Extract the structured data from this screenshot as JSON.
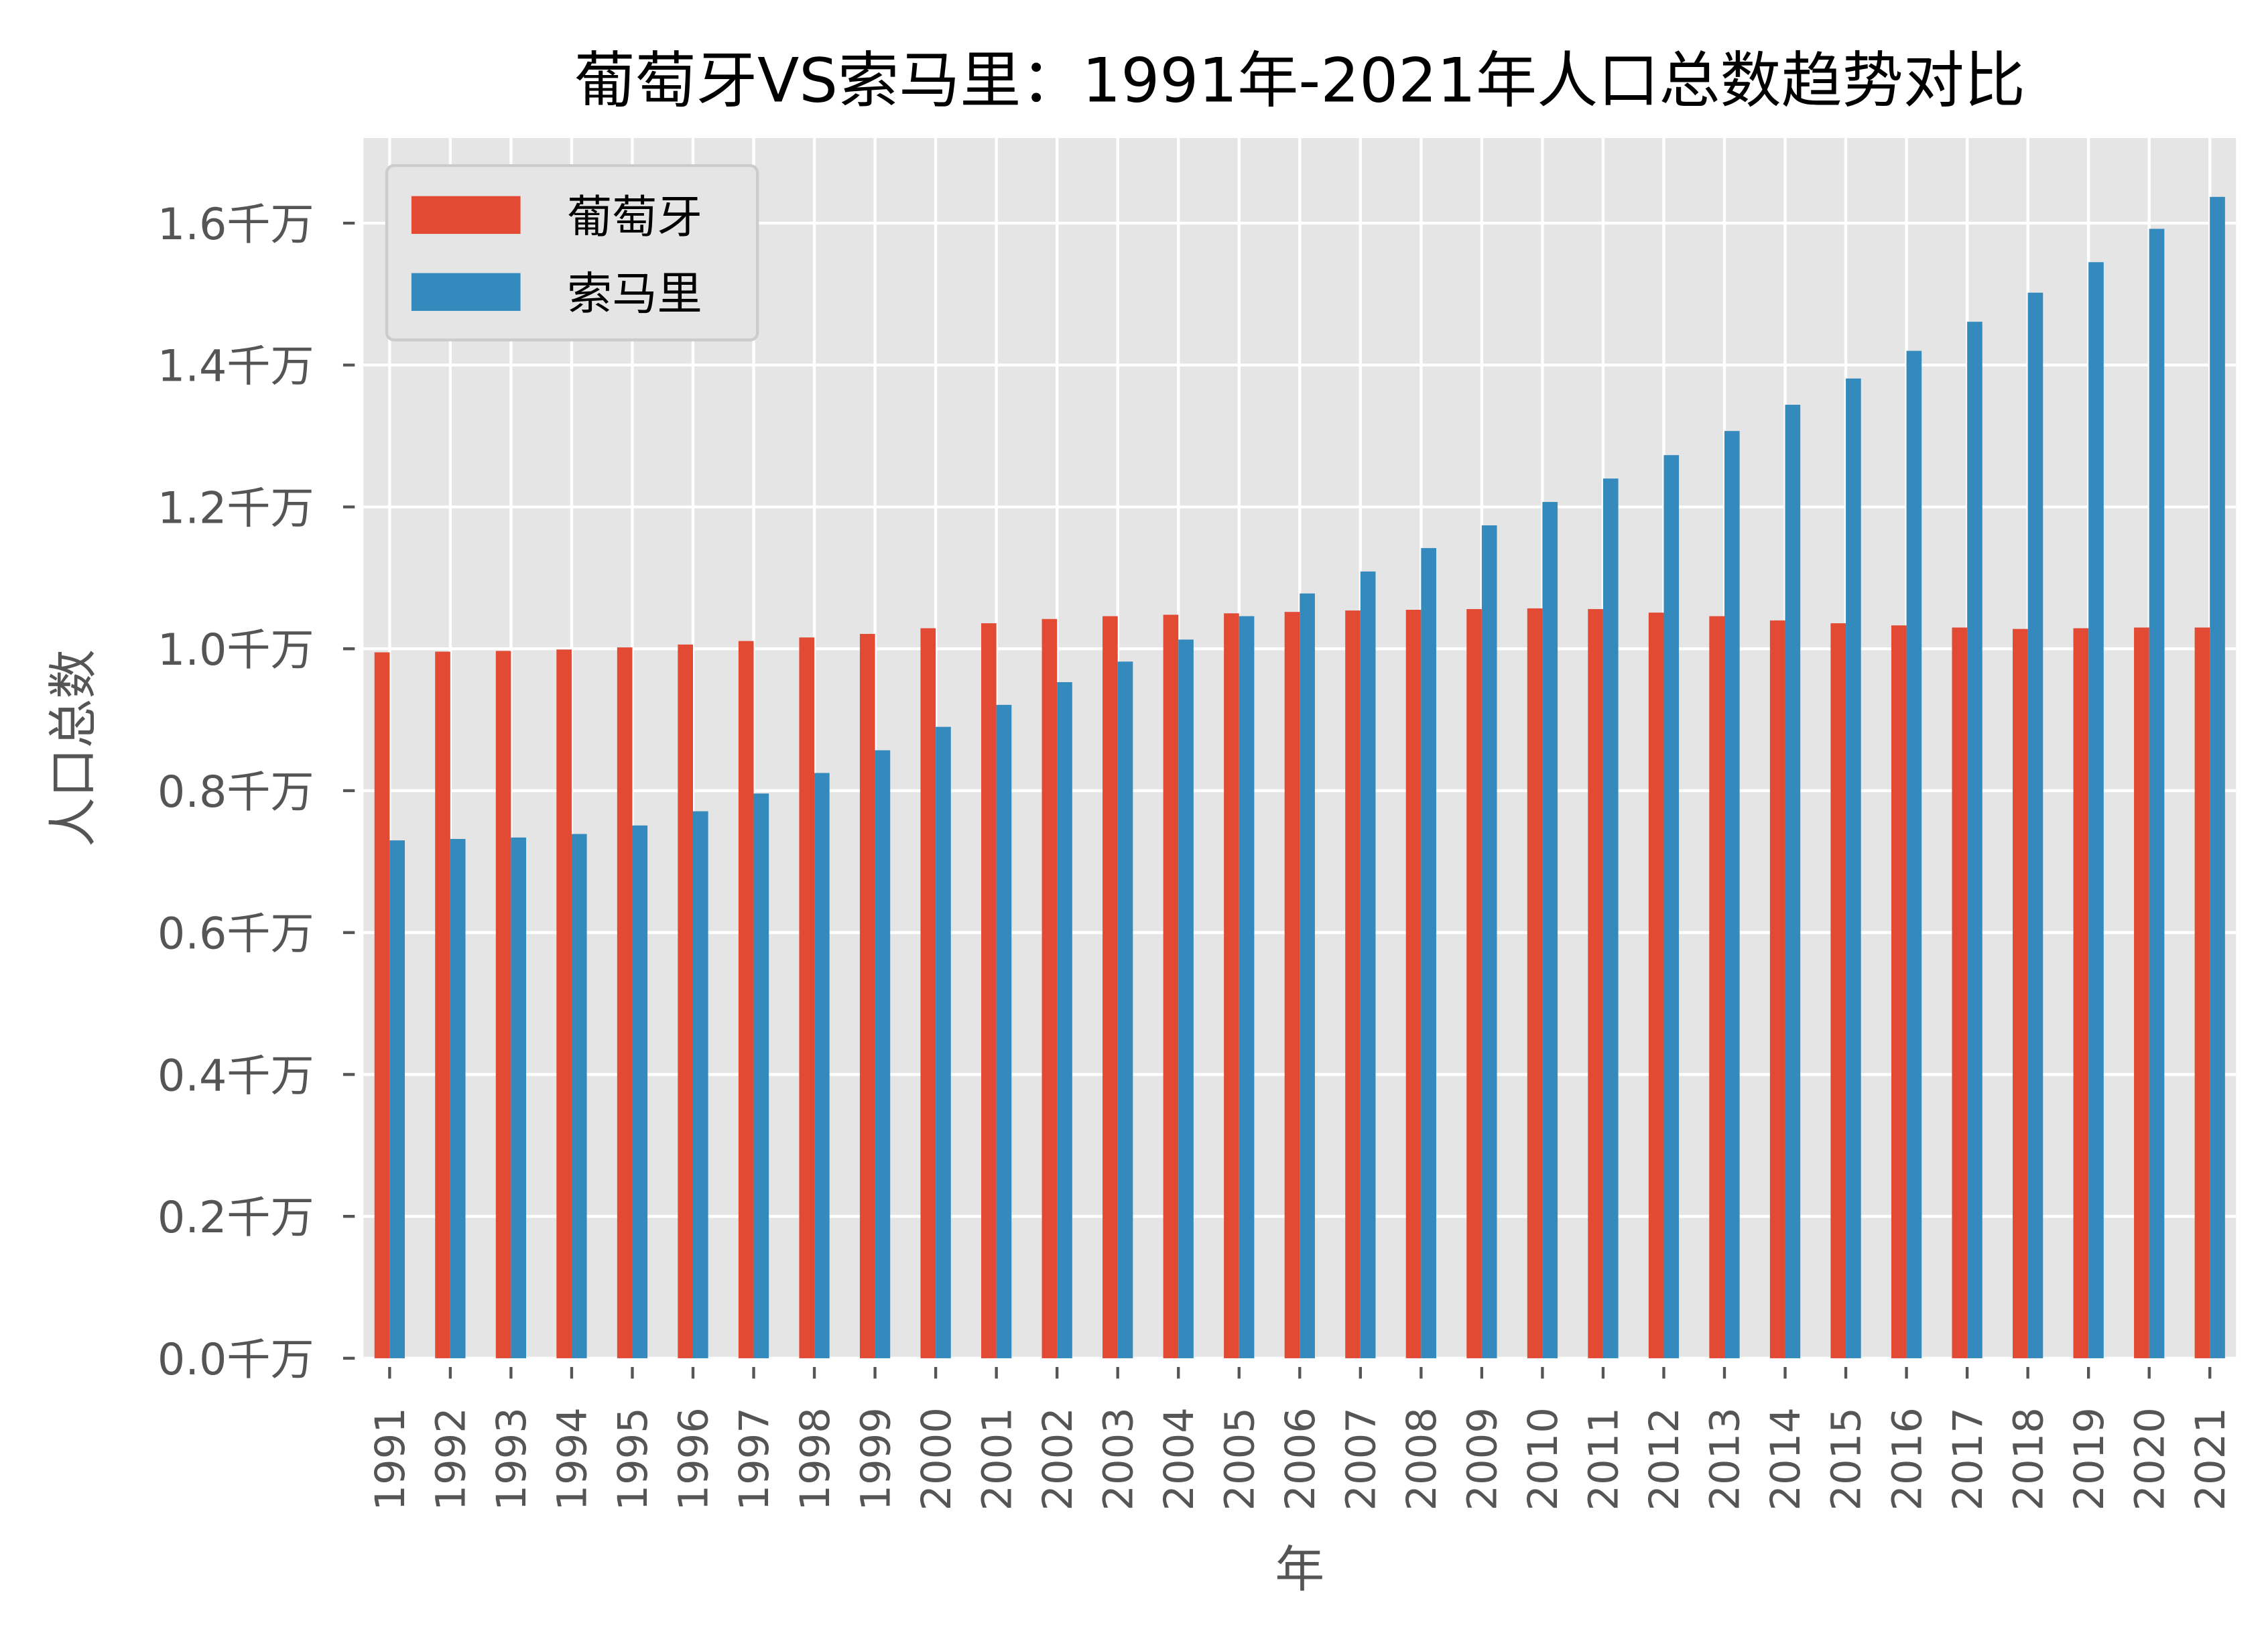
{
  "chart_data": {
    "type": "bar",
    "title": "葡萄牙VS索马里：1991年-2021年人口总数趋势对比",
    "xlabel": "年",
    "ylabel": "人口总数",
    "y_unit_suffix": "千万",
    "ylim": [
      0,
      1.72
    ],
    "yticks": [
      0.0,
      0.2,
      0.4,
      0.6,
      0.8,
      1.0,
      1.2,
      1.4,
      1.6
    ],
    "ytick_labels": [
      "0.0千万",
      "0.2千万",
      "0.4千万",
      "0.6千万",
      "0.8千万",
      "1.0千万",
      "1.2千万",
      "1.4千万",
      "1.6千万"
    ],
    "grid": true,
    "legend_position": "top-left",
    "categories": [
      "1991",
      "1992",
      "1993",
      "1994",
      "1995",
      "1996",
      "1997",
      "1998",
      "1999",
      "2000",
      "2001",
      "2002",
      "2003",
      "2004",
      "2005",
      "2006",
      "2007",
      "2008",
      "2009",
      "2010",
      "2011",
      "2012",
      "2013",
      "2014",
      "2015",
      "2016",
      "2017",
      "2018",
      "2019",
      "2020",
      "2021"
    ],
    "series": [
      {
        "name": "葡萄牙",
        "color": "#E24A33",
        "values": [
          0.995,
          0.996,
          0.997,
          0.999,
          1.002,
          1.006,
          1.011,
          1.016,
          1.021,
          1.029,
          1.036,
          1.042,
          1.046,
          1.048,
          1.05,
          1.052,
          1.054,
          1.055,
          1.056,
          1.057,
          1.056,
          1.051,
          1.046,
          1.04,
          1.036,
          1.033,
          1.03,
          1.028,
          1.029,
          1.03,
          1.03
        ]
      },
      {
        "name": "索马里",
        "color": "#348ABD",
        "values": [
          0.73,
          0.732,
          0.734,
          0.739,
          0.751,
          0.771,
          0.796,
          0.825,
          0.857,
          0.89,
          0.921,
          0.953,
          0.982,
          1.013,
          1.046,
          1.078,
          1.109,
          1.142,
          1.174,
          1.207,
          1.24,
          1.273,
          1.307,
          1.344,
          1.381,
          1.42,
          1.461,
          1.502,
          1.545,
          1.592,
          1.637
        ]
      }
    ]
  }
}
